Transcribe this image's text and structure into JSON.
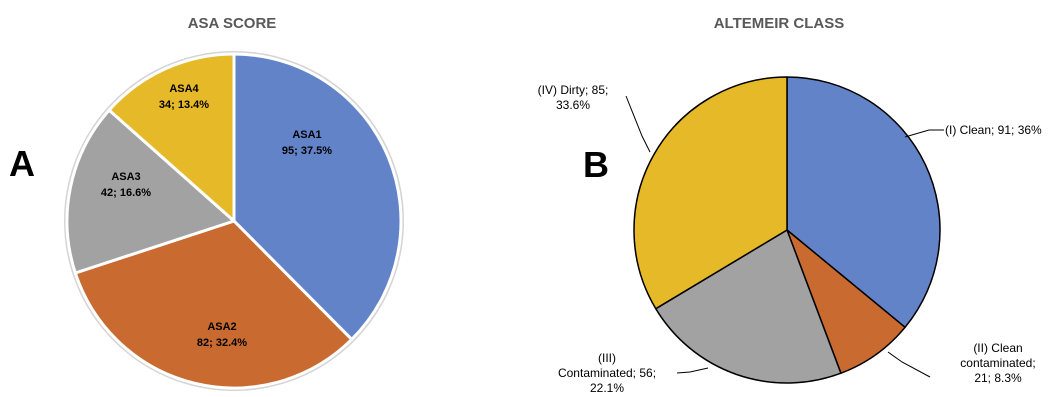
{
  "panels": {
    "a_letter": "A",
    "b_letter": "B"
  },
  "chart_data": [
    {
      "type": "pie",
      "title": "ASA SCORE",
      "slices": [
        {
          "name": "ASA1",
          "label": "95; 37.5%",
          "value": 95,
          "percent": 37.5,
          "color": "#6383C8"
        },
        {
          "name": "ASA2",
          "label": "82; 32.4%",
          "value": 82,
          "percent": 32.4,
          "color": "#C96B30"
        },
        {
          "name": "ASA3",
          "label": "42; 16.6%",
          "value": 42,
          "percent": 16.6,
          "color": "#A2A2A2"
        },
        {
          "name": "ASA4",
          "label": "34; 13.4%",
          "value": 34,
          "percent": 13.4,
          "color": "#E6B929"
        }
      ],
      "slice_border": "#ffffff",
      "outline": "#d4d4d4"
    },
    {
      "type": "pie",
      "title": "ALTEMEIR CLASS",
      "slices": [
        {
          "name": "(I) Clean",
          "lines": [
            "(I) Clean;  91; 36%"
          ],
          "value": 91,
          "percent": 36,
          "color": "#6383C8"
        },
        {
          "name": "(II) Clean contaminated",
          "lines": [
            "(II) Clean",
            "contaminated;",
            "21; 8.3%"
          ],
          "value": 21,
          "percent": 8.3,
          "color": "#C96B30"
        },
        {
          "name": "(III) Contaminated",
          "lines": [
            "(III)",
            "Contaminated;  56;",
            "22.1%"
          ],
          "value": 56,
          "percent": 22.1,
          "color": "#A2A2A2"
        },
        {
          "name": "(IV) Dirty",
          "lines": [
            "(IV) Dirty;  85;",
            "33.6%"
          ],
          "value": 85,
          "percent": 33.6,
          "color": "#E6B929"
        }
      ],
      "slice_border": "#000000"
    }
  ]
}
